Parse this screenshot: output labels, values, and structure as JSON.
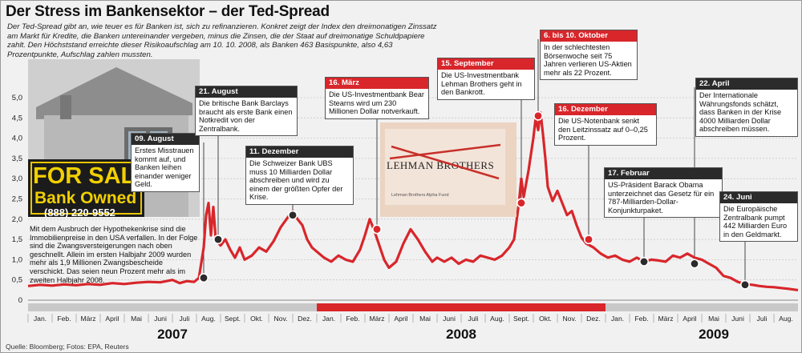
{
  "title": "Der Stress im Bankensektor – der Ted-Spread",
  "intro": "Der Ted-Spread gibt an, wie teuer es für Banken ist, sich zu refinanzieren. Konkret zeigt der Index den dreimonatigen Zinssatz am Markt für Kredite, die Banken untereinander vergeben, minus die Zinsen, die der Staat auf dreimonatige Schuldpapiere zahlt. Den Höchststand erreichte dieser Risikoaufschlag am 10. 10. 2008, als Banken 463 Basispunkte, also 4,63 Prozentpunkte, Aufschlag zahlen mussten.",
  "source": "Quelle: Bloomberg; Fotos: EPA, Reuters",
  "housing_text": "Mit dem Ausbruch der Hypothekenkrise sind die Immobilienpreise in den USA verfallen. In der Folge sind die Zwangsversteigerungen nach oben geschnellt. Allein im ersten Halbjahr 2009 wurden mehr als 1,9 Millionen Zwangsbescheide verschickt. Das seien neun Prozent mehr als im zweiten Halbjahr 2008.",
  "photo_sign": {
    "line1": "FOR SAL",
    "line2": "Bank Owned",
    "line3": "(888) 220-9552"
  },
  "lehman_photo_text": {
    "logo": "LEHMAN BROTHERS",
    "caption": "Lehman Brothers Alpha Fund"
  },
  "colors": {
    "line": "#d8262b",
    "red_bar": "#d8262b",
    "dark_bar": "#2b2b2b",
    "background": "#f1f1f1",
    "grid": "#c8c8c8"
  },
  "callouts": [
    {
      "id": "aug07",
      "date": "09. August",
      "text": "Erstes Misstrauen kommt auf, und Banken leihen einander weniger Geld.",
      "style": "dark"
    },
    {
      "id": "aug21",
      "date": "21. August",
      "text": "Die britische Bank Barclays braucht als erste Bank einen Notkredit von der Zentralbank.",
      "style": "dark"
    },
    {
      "id": "dec11",
      "date": "11. Dezember",
      "text": "Die Schweizer Bank UBS muss 10 Milliarden Dollar abschreiben und wird zu einem der größten Opfer der Krise.",
      "style": "dark"
    },
    {
      "id": "mar16",
      "date": "16. März",
      "text": "Die US-Investmentbank Bear Stearns wird um 230 Millionen Dollar notverkauft.",
      "style": "red"
    },
    {
      "id": "sep15",
      "date": "15. September",
      "text": "Die US-Investmentbank Lehman Brothers geht in den Bankrott.",
      "style": "red"
    },
    {
      "id": "oct6",
      "date": "6. bis 10. Oktober",
      "text": "In der schlechtesten Börsenwoche seit 75 Jahren verlieren US-Aktien mehr als 22 Prozent.",
      "style": "red"
    },
    {
      "id": "dec16",
      "date": "16. Dezember",
      "text": "Die US-Notenbank senkt den Leitzinssatz auf 0–0,25 Prozent.",
      "style": "red"
    },
    {
      "id": "feb17",
      "date": "17. Februar",
      "text": "US-Präsident Barack Obama unterzeichnet das Gesetz für ein 787-Milliarden-Dollar-Konjunkturpaket.",
      "style": "dark"
    },
    {
      "id": "apr22",
      "date": "22. April",
      "text": "Der Internationale Währungsfonds schätzt, dass Banken in der Krise 4000 Milliarden Dollar abschreiben müssen.",
      "style": "dark"
    },
    {
      "id": "jun24",
      "date": "24. Juni",
      "text": "Die Europäische Zentralbank pumpt 442 Milliarden Euro in den Geldmarkt.",
      "style": "dark"
    }
  ],
  "chart_data": {
    "type": "line",
    "title": "Der Stress im Bankensektor – der Ted-Spread",
    "xlabel": "",
    "ylabel": "",
    "ylim": [
      0,
      5.0
    ],
    "xlim": [
      0,
      32
    ],
    "x_unit": "months since start of January 2007",
    "y_ticks": [
      "0",
      "0,5",
      "1,0",
      "1,5",
      "2,0",
      "2,5",
      "3,0",
      "3,5",
      "4,0",
      "4,5",
      "5,0"
    ],
    "y_tick_values": [
      0,
      0.5,
      1.0,
      1.5,
      2.0,
      2.5,
      3.0,
      3.5,
      4.0,
      4.5,
      5.0
    ],
    "months": [
      "Jan.",
      "Feb.",
      "März",
      "April",
      "Mai",
      "Juni",
      "Juli",
      "Aug.",
      "Sept.",
      "Okt.",
      "Nov.",
      "Dez.",
      "Jan.",
      "Feb.",
      "März",
      "April",
      "Mai",
      "Juni",
      "Juli",
      "Aug.",
      "Sept.",
      "Okt.",
      "Nov.",
      "Dez.",
      "Jan.",
      "Feb.",
      "März",
      "April",
      "Mai",
      "Juni",
      "Juli",
      "Aug."
    ],
    "years": [
      {
        "label": "2007",
        "start": 0,
        "end": 12,
        "band": "light"
      },
      {
        "label": "2008",
        "start": 12,
        "end": 24,
        "band": "red"
      },
      {
        "label": "2009",
        "start": 24,
        "end": 32,
        "band": "light"
      }
    ],
    "grid": true,
    "series": [
      {
        "name": "",
        "x": [
          0,
          0.5,
          1,
          1.5,
          2,
          2.5,
          3,
          3.5,
          4,
          4.5,
          5,
          5.5,
          6,
          6.3,
          6.6,
          6.9,
          7.1,
          7.3,
          7.4,
          7.5,
          7.6,
          7.7,
          7.8,
          8.0,
          8.2,
          8.4,
          8.6,
          8.8,
          9.0,
          9.3,
          9.6,
          9.9,
          10.2,
          10.5,
          10.8,
          11.0,
          11.2,
          11.4,
          11.6,
          11.8,
          12.0,
          12.3,
          12.6,
          12.9,
          13.2,
          13.5,
          13.8,
          14.0,
          14.2,
          14.4,
          14.6,
          14.8,
          15.0,
          15.3,
          15.6,
          15.9,
          16.2,
          16.5,
          16.8,
          17.0,
          17.3,
          17.6,
          17.9,
          18.2,
          18.5,
          18.8,
          19.1,
          19.4,
          19.7,
          20.0,
          20.2,
          20.4,
          20.5,
          20.6,
          20.8,
          21.0,
          21.1,
          21.2,
          21.3,
          21.4,
          21.5,
          21.6,
          21.8,
          22.0,
          22.2,
          22.4,
          22.6,
          22.8,
          23.0,
          23.2,
          23.5,
          23.8,
          24.1,
          24.4,
          24.7,
          25.0,
          25.3,
          25.6,
          25.9,
          26.2,
          26.5,
          26.8,
          27.1,
          27.4,
          27.7,
          28.0,
          28.3,
          28.6,
          28.9,
          29.2,
          29.5,
          29.8,
          30.1,
          30.4,
          30.7,
          31.0,
          31.3,
          31.6,
          32.0
        ],
        "y": [
          0.35,
          0.38,
          0.36,
          0.39,
          0.37,
          0.4,
          0.38,
          0.42,
          0.4,
          0.43,
          0.45,
          0.44,
          0.5,
          0.42,
          0.47,
          0.45,
          0.55,
          1.3,
          2.1,
          2.4,
          1.6,
          2.3,
          1.5,
          1.35,
          1.5,
          1.25,
          1.05,
          1.3,
          1.0,
          1.1,
          1.3,
          1.2,
          1.45,
          1.8,
          2.05,
          2.2,
          2.0,
          1.85,
          1.5,
          1.3,
          1.2,
          1.05,
          0.95,
          1.1,
          1.0,
          0.95,
          1.25,
          1.6,
          2.0,
          1.7,
          1.35,
          1.0,
          0.8,
          0.95,
          1.4,
          1.75,
          1.5,
          1.2,
          0.95,
          1.05,
          0.95,
          1.05,
          0.9,
          1.0,
          0.95,
          1.1,
          1.05,
          1.0,
          1.1,
          1.3,
          1.5,
          2.4,
          3.0,
          2.55,
          3.2,
          4.0,
          4.5,
          4.2,
          4.63,
          4.1,
          3.5,
          2.8,
          2.45,
          2.7,
          2.4,
          2.1,
          2.2,
          1.85,
          1.55,
          1.4,
          1.3,
          1.15,
          1.05,
          1.1,
          1.0,
          0.95,
          1.05,
          0.95,
          1.0,
          0.98,
          0.95,
          1.1,
          1.05,
          1.15,
          1.05,
          1.0,
          0.9,
          0.8,
          0.6,
          0.55,
          0.45,
          0.4,
          0.38,
          0.35,
          0.33,
          0.32,
          0.3,
          0.28,
          0.25
        ]
      }
    ],
    "markers": [
      {
        "callout": "aug07",
        "x": 7.3,
        "y": 0.55,
        "color": "dark"
      },
      {
        "callout": "aug21",
        "x": 7.9,
        "y": 1.5,
        "color": "dark"
      },
      {
        "callout": "dec11",
        "x": 11.0,
        "y": 2.1,
        "color": "dark"
      },
      {
        "callout": "mar16",
        "x": 14.5,
        "y": 1.75,
        "color": "red"
      },
      {
        "callout": "sep15",
        "x": 20.5,
        "y": 2.4,
        "color": "red"
      },
      {
        "callout": "oct6",
        "x": 21.2,
        "y": 4.55,
        "color": "red"
      },
      {
        "callout": "dec16",
        "x": 23.3,
        "y": 1.5,
        "color": "red"
      },
      {
        "callout": "feb17",
        "x": 25.6,
        "y": 0.95,
        "color": "dark"
      },
      {
        "callout": "apr22",
        "x": 27.7,
        "y": 0.9,
        "color": "dark"
      },
      {
        "callout": "jun24",
        "x": 29.8,
        "y": 0.38,
        "color": "dark"
      }
    ]
  }
}
